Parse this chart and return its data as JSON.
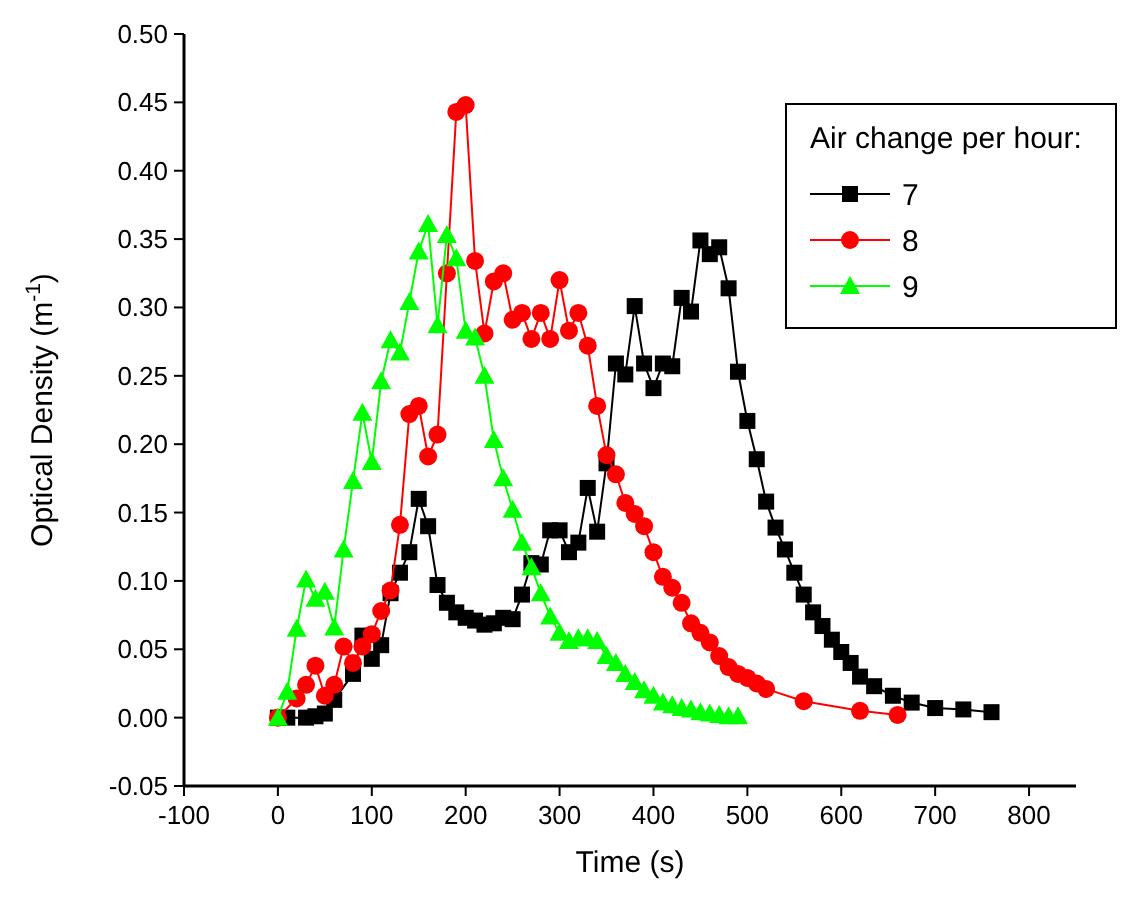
{
  "chart_data": {
    "type": "line",
    "xlabel": "Time (s)",
    "ylabel": "Optical Density (m$^{-1}$)",
    "legend_title": "Air change per hour:",
    "legend": "top right",
    "grid": false,
    "xlim": [
      -100,
      850
    ],
    "xticks": [
      -100,
      0,
      100,
      200,
      300,
      400,
      500,
      600,
      700,
      800
    ],
    "ylim": [
      -0.05,
      0.5
    ],
    "yticks": [
      {
        "value": -0.05,
        "label": "-0.05"
      },
      {
        "value": 0,
        "label": "0.00"
      },
      {
        "value": 0.05,
        "label": "0.05"
      },
      {
        "value": 0.1,
        "label": "0.10"
      },
      {
        "value": 0.15,
        "label": "0.15"
      },
      {
        "value": 0.2,
        "label": "0.20"
      },
      {
        "value": 0.25,
        "label": "0.25"
      },
      {
        "value": 0.3,
        "label": "0.30"
      },
      {
        "value": 0.35,
        "label": "0.35"
      },
      {
        "value": 0.4,
        "label": "0.40"
      },
      {
        "value": 0.45,
        "label": "0.45"
      },
      {
        "value": 0.5,
        "label": "0.50"
      }
    ],
    "series": [
      {
        "name": "7",
        "color": "#000000",
        "marker": "square",
        "x": [
          0,
          10,
          30,
          40,
          50,
          60,
          80,
          90,
          100,
          110,
          120,
          130,
          140,
          150,
          160,
          170,
          180,
          190,
          200,
          210,
          220,
          230,
          240,
          250,
          260,
          270,
          280,
          290,
          300,
          310,
          320,
          330,
          340,
          350,
          360,
          370,
          380,
          390,
          400,
          410,
          420,
          430,
          440,
          450,
          460,
          470,
          480,
          490,
          500,
          510,
          520,
          530,
          540,
          550,
          560,
          570,
          580,
          590,
          600,
          610,
          620,
          635,
          655,
          675,
          700,
          730,
          760
        ],
        "values": [
          0,
          0,
          0,
          0.001,
          0.003,
          0.013,
          0.032,
          0.06,
          0.043,
          0.053,
          0.091,
          0.106,
          0.121,
          0.16,
          0.14,
          0.097,
          0.084,
          0.077,
          0.073,
          0.071,
          0.068,
          0.069,
          0.073,
          0.072,
          0.09,
          0.113,
          0.112,
          0.137,
          0.137,
          0.121,
          0.128,
          0.168,
          0.136,
          0.186,
          0.259,
          0.251,
          0.301,
          0.259,
          0.241,
          0.259,
          0.257,
          0.307,
          0.297,
          0.349,
          0.339,
          0.344,
          0.314,
          0.253,
          0.217,
          0.189,
          0.158,
          0.139,
          0.123,
          0.106,
          0.09,
          0.077,
          0.067,
          0.057,
          0.048,
          0.04,
          0.03,
          0.023,
          0.016,
          0.011,
          0.007,
          0.006,
          0.004
        ]
      },
      {
        "name": "8",
        "color": "#ff0000",
        "marker": "circle",
        "x": [
          0,
          10,
          20,
          30,
          40,
          50,
          60,
          70,
          80,
          90,
          100,
          110,
          120,
          130,
          140,
          150,
          160,
          170,
          180,
          190,
          200,
          210,
          220,
          230,
          240,
          250,
          260,
          270,
          280,
          290,
          300,
          310,
          320,
          330,
          340,
          350,
          360,
          370,
          380,
          390,
          400,
          410,
          420,
          430,
          440,
          450,
          460,
          470,
          480,
          490,
          500,
          510,
          520,
          560,
          620,
          660
        ],
        "values": [
          0,
          null,
          0.014,
          0.024,
          0.038,
          0.016,
          0.024,
          0.052,
          0.04,
          0.052,
          0.061,
          0.078,
          0.093,
          0.141,
          0.222,
          0.228,
          0.191,
          0.207,
          0.325,
          0.443,
          0.448,
          0.334,
          0.281,
          0.319,
          0.325,
          0.291,
          0.296,
          0.277,
          0.296,
          0.277,
          0.32,
          0.283,
          0.296,
          0.272,
          0.228,
          0.192,
          0.178,
          0.157,
          0.149,
          0.14,
          0.121,
          0.103,
          0.095,
          0.084,
          0.069,
          0.062,
          0.055,
          0.045,
          0.037,
          0.032,
          0.029,
          0.025,
          0.021,
          0.012,
          0.005,
          0.002
        ]
      },
      {
        "name": "9",
        "color": "#00ff00",
        "marker": "triangle",
        "x": [
          0,
          10,
          20,
          30,
          40,
          50,
          60,
          70,
          80,
          90,
          100,
          110,
          120,
          130,
          140,
          150,
          160,
          170,
          180,
          190,
          200,
          210,
          220,
          230,
          240,
          250,
          260,
          270,
          280,
          290,
          300,
          310,
          320,
          330,
          340,
          350,
          360,
          370,
          380,
          390,
          400,
          410,
          420,
          430,
          440,
          450,
          460,
          470,
          480,
          490
        ],
        "values": [
          0,
          0.019,
          0.065,
          0.101,
          0.087,
          0.092,
          0.066,
          0.123,
          0.173,
          0.223,
          0.187,
          0.246,
          0.276,
          0.267,
          0.304,
          0.341,
          0.361,
          0.287,
          0.353,
          0.336,
          0.283,
          0.278,
          0.25,
          0.203,
          0.175,
          0.152,
          0.128,
          0.11,
          0.091,
          0.074,
          0.062,
          0.056,
          0.058,
          0.058,
          0.056,
          0.045,
          0.04,
          0.032,
          0.026,
          0.02,
          0.016,
          0.011,
          0.009,
          0.007,
          0.006,
          0.004,
          0.003,
          0.002,
          0.001,
          0.001
        ]
      }
    ]
  }
}
